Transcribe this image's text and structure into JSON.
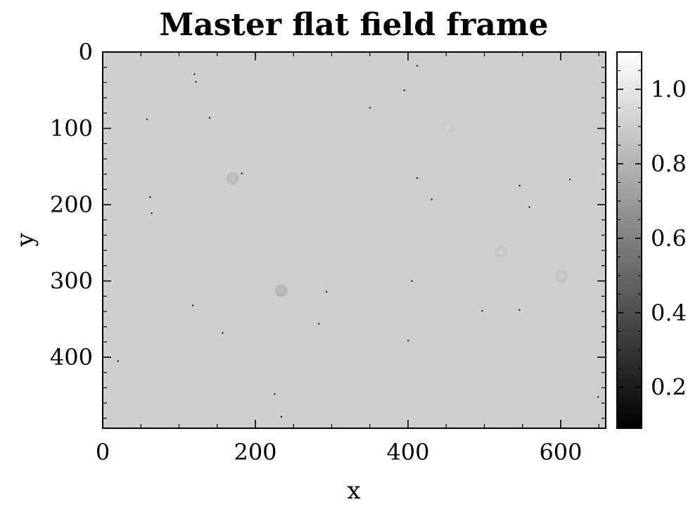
{
  "chart_data": {
    "type": "heatmap",
    "title": "Master flat field frame",
    "xlabel": "x",
    "ylabel": "y",
    "xlim": [
      0,
      659
    ],
    "ylim": [
      493,
      0
    ],
    "x_ticks": [
      0,
      200,
      400,
      600
    ],
    "y_ticks": [
      0,
      100,
      200,
      300,
      400
    ],
    "colormap": "gray",
    "colorbar": {
      "vmin": 0.09,
      "vmax": 1.1,
      "ticks": [
        0.2,
        0.4,
        0.6,
        0.8,
        1.0
      ],
      "tick_labels": [
        "0.2",
        "0.4",
        "0.6",
        "0.8",
        "1.0"
      ]
    },
    "background_value": 0.91,
    "dust_donuts": [
      {
        "x": 170,
        "y": 166,
        "value": 0.82
      },
      {
        "x": 234,
        "y": 313,
        "value": 0.8
      },
      {
        "x": 522,
        "y": 262,
        "value": 0.87
      },
      {
        "x": 601,
        "y": 294,
        "value": 0.86
      },
      {
        "x": 453,
        "y": 99,
        "value": 0.89
      }
    ],
    "hot_pixels": [
      {
        "x": 120,
        "y": 29
      },
      {
        "x": 122,
        "y": 39
      },
      {
        "x": 140,
        "y": 86
      },
      {
        "x": 58,
        "y": 88
      },
      {
        "x": 412,
        "y": 18
      },
      {
        "x": 350,
        "y": 73
      },
      {
        "x": 395,
        "y": 50
      },
      {
        "x": 182,
        "y": 159
      },
      {
        "x": 412,
        "y": 165
      },
      {
        "x": 431,
        "y": 193
      },
      {
        "x": 62,
        "y": 190
      },
      {
        "x": 64,
        "y": 211
      },
      {
        "x": 546,
        "y": 175
      },
      {
        "x": 559,
        "y": 203
      },
      {
        "x": 612,
        "y": 167
      },
      {
        "x": 118,
        "y": 332
      },
      {
        "x": 293,
        "y": 314
      },
      {
        "x": 283,
        "y": 356
      },
      {
        "x": 157,
        "y": 368
      },
      {
        "x": 405,
        "y": 300
      },
      {
        "x": 497,
        "y": 339
      },
      {
        "x": 546,
        "y": 338
      },
      {
        "x": 400,
        "y": 378
      },
      {
        "x": 225,
        "y": 448
      },
      {
        "x": 234,
        "y": 478
      },
      {
        "x": 20,
        "y": 405
      },
      {
        "x": 649,
        "y": 452
      }
    ]
  }
}
